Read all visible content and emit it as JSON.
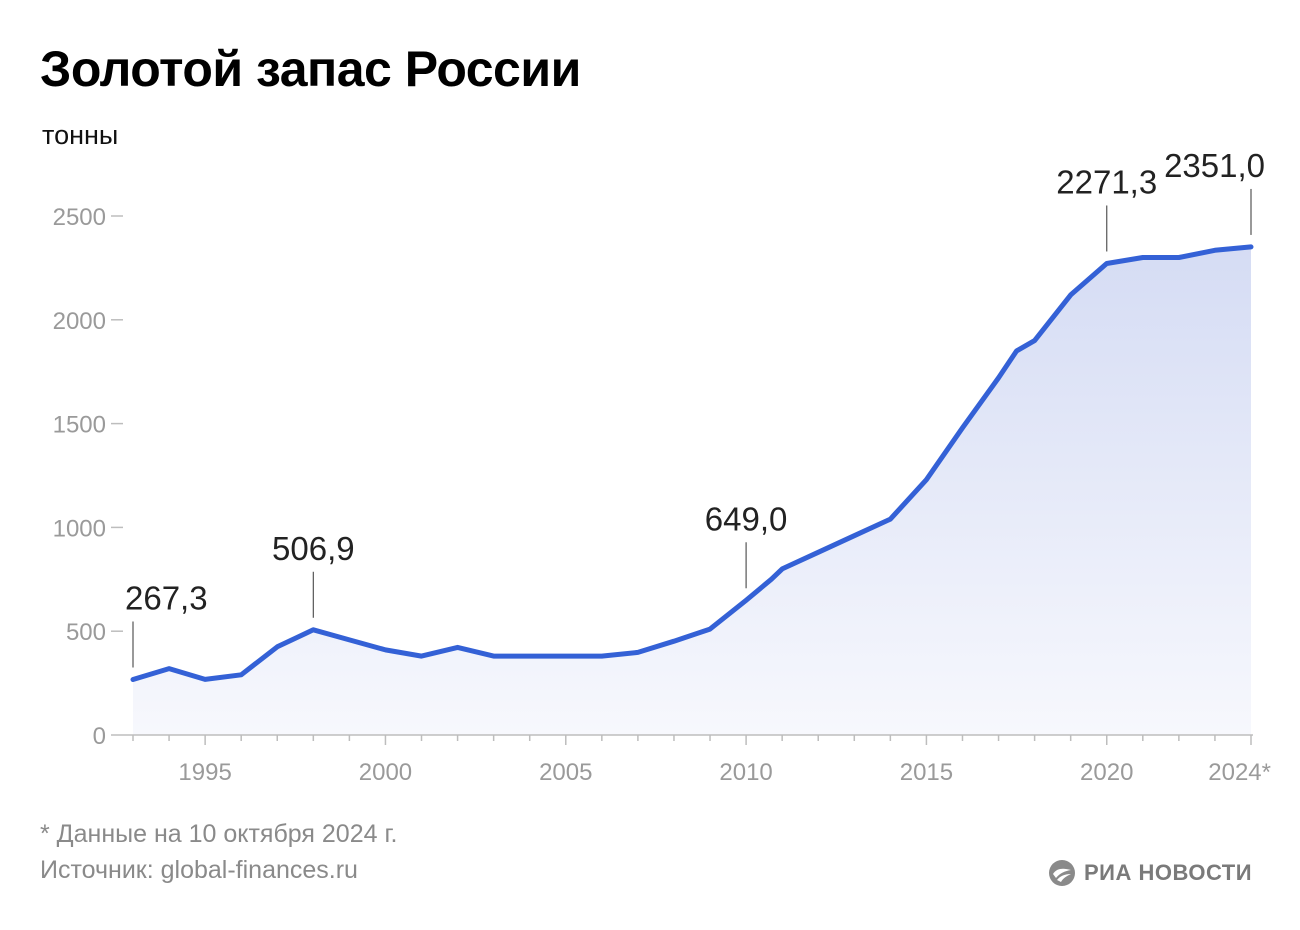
{
  "header": {
    "title": "Золотой запас России",
    "unit": "тонны"
  },
  "footer": {
    "footnote": "* Данные на 10 октября 2024 г.",
    "source": "Источник: global-finances.ru",
    "logo": "РИА НОВОСТИ",
    "logo_icon": "ria-logo-icon"
  },
  "colors": {
    "line": "#3461D6",
    "area_top": "#D5DCF4",
    "area_bottom": "#F7F8FD",
    "axis": "#bdbdbd"
  },
  "chart_data": {
    "type": "area",
    "title": "Золотой запас России",
    "ylabel": "тонны",
    "xlabel": "",
    "ylim": [
      0,
      2600
    ],
    "yticks": [
      0,
      500,
      1000,
      1500,
      2000,
      2500
    ],
    "xlim": [
      1993,
      2024
    ],
    "xtick_labels": [
      {
        "x": 1995,
        "label": "1995"
      },
      {
        "x": 2000,
        "label": "2000"
      },
      {
        "x": 2005,
        "label": "2005"
      },
      {
        "x": 2010,
        "label": "2010"
      },
      {
        "x": 2015,
        "label": "2015"
      },
      {
        "x": 2020,
        "label": "2020"
      },
      {
        "x": 2024,
        "label": "2024*"
      }
    ],
    "grid": false,
    "series": [
      {
        "points": [
          [
            1993,
            267.3
          ],
          [
            1994,
            320
          ],
          [
            1995,
            268
          ],
          [
            1996,
            290
          ],
          [
            1997,
            425
          ],
          [
            1998,
            506.9
          ],
          [
            1999,
            458
          ],
          [
            2000,
            410
          ],
          [
            2001,
            380
          ],
          [
            2002,
            422
          ],
          [
            2003,
            380
          ],
          [
            2004,
            380
          ],
          [
            2005,
            380
          ],
          [
            2006,
            380
          ],
          [
            2007,
            398
          ],
          [
            2008,
            452
          ],
          [
            2009,
            510
          ],
          [
            2010,
            649.0
          ],
          [
            2010.7,
            750
          ],
          [
            2011,
            800
          ],
          [
            2012,
            880
          ],
          [
            2013,
            960
          ],
          [
            2014,
            1040
          ],
          [
            2015,
            1230
          ],
          [
            2016,
            1480
          ],
          [
            2017,
            1720
          ],
          [
            2017.5,
            1850
          ],
          [
            2018,
            1900
          ],
          [
            2019,
            2120
          ],
          [
            2020,
            2271.3
          ],
          [
            2021,
            2300
          ],
          [
            2022,
            2300
          ],
          [
            2023,
            2335
          ],
          [
            2024,
            2351.0
          ]
        ]
      }
    ],
    "annotations": [
      {
        "x": 1993,
        "y": 267.3,
        "label": "267,3"
      },
      {
        "x": 1998,
        "y": 506.9,
        "label": "506,9"
      },
      {
        "x": 2010,
        "y": 649.0,
        "label": "649,0"
      },
      {
        "x": 2020,
        "y": 2271.3,
        "label": "2271,3"
      },
      {
        "x": 2024,
        "y": 2351.0,
        "label": "2351,0"
      }
    ]
  }
}
